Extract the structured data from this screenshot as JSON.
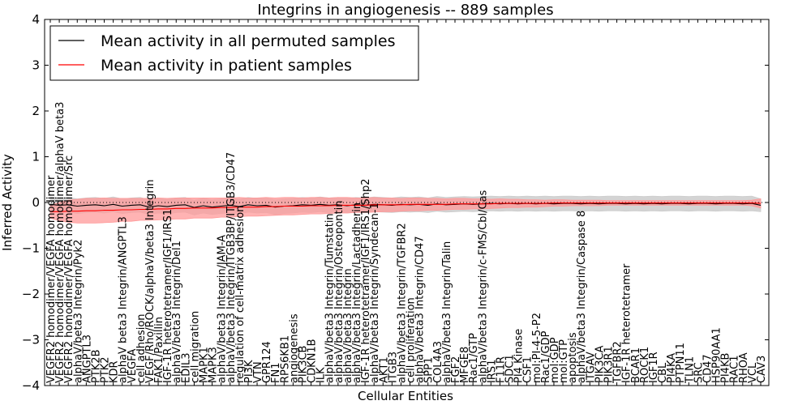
{
  "chart_data": {
    "type": "line",
    "title": "Integrins in angiogenesis -- 889 samples",
    "xlabel": "Cellular Entities",
    "ylabel": "Inferred Activity",
    "ylim": [
      -4,
      4
    ],
    "yticks": [
      -4,
      -3,
      -2,
      -1,
      0,
      1,
      2,
      3,
      4
    ],
    "ytick_labels": [
      "−4",
      "−3",
      "−2",
      "−1",
      "0",
      "1",
      "2",
      "3",
      "4"
    ],
    "legend_position": "top-left",
    "categories": [
      "VEGFR2 homodimer/VEGFA homodimer",
      "VEGFR2 homodimer/VEGFA homodimer/alphaV beta3",
      "VEGFR2 homodimer/VEGFA homodimer/Src",
      "alphaV/beta3 Integrin/Pyk2",
      "ANGPTL3",
      "PTK2B",
      "PTK2",
      "KDR",
      "alphaV beta3 Integrin/ANGPTL3",
      "VEGFA",
      "cell adhesion",
      "VEGF/Rho/ROCK/alphaV/beta3 Integrin",
      "FAK1/Paxillin",
      "IGF-1R heterotetramer/IGF1/IRS1",
      "alphaV/beta3 Integrin/Del1",
      "EDIL3",
      "cell migration",
      "MAPK1",
      "MAPK3",
      "alphaV/beta3 Integrin/JAM-A",
      "alphaV/beta3 Integrin/ITGB3BP/ITGB3/CD47",
      "regulation of cell-matrix adhesion",
      "PI3K",
      "VTN",
      "GPR124",
      "FN1",
      "RPS6KB1",
      "angiogenesis",
      "PIK3CB",
      "CDKN1B",
      "ILK",
      "alphaV/beta3 Integrin/Tumstatin",
      "alphaV/beta3 Integrin/Osteopontin",
      "alphaV/beta3 Integrin",
      "alphaV/beta3 Integrin/Lactadherin",
      "IGF-1R heterotetramer/IGF1/IRS1/Shp2",
      "alphaV/beta3 Integrin/Syndecan-1",
      "AKT1",
      "ITGB3",
      "alphaV/beta3 Integrin/TGFBR2",
      "cell proliferation",
      "alphaV/beta3 Integrin/CD47",
      "SPP1",
      "COL4A3",
      "alphaV/beta3 Integrin/Talin",
      "FGF2",
      "MFGE8",
      "Rac1/GTP",
      "alphaV/beta3 Integrin/c-FMS/Cbl/Cas",
      "IRS1",
      "F11R",
      "SDC1",
      "PI4 Kinase",
      "CSF1",
      "mol:PI-4-5-P2",
      "Rac1/GDP",
      "mol:GDP",
      "mol:GTP",
      "apoptosis",
      "alphaV/beta3 Integrin/Caspase 8",
      "ITGAV",
      "PIK3CA",
      "PIK3R1",
      "TGFBR2",
      "IGF-1R heterotetramer",
      "BCAR1",
      "ROCK1",
      "IGF1R",
      "CBL",
      "PI4KA",
      "PTPN11",
      "TLN1",
      "SRC",
      "CD47",
      "HSP90AA1",
      "PI4KB",
      "RAC1",
      "RHOA",
      "VCL",
      "CAV3"
    ],
    "series": [
      {
        "name": "Mean activity in all permuted samples",
        "color": "#000000",
        "band_color": "#cccccc",
        "values": [
          -0.04,
          -0.06,
          -0.05,
          -0.08,
          -0.06,
          -0.05,
          -0.07,
          -0.04,
          -0.08,
          -0.06,
          -0.05,
          -0.1,
          -0.07,
          -0.09,
          -0.06,
          -0.05,
          -0.11,
          -0.07,
          -0.1,
          -0.08,
          -0.06,
          -0.09,
          -0.05,
          -0.07,
          -0.06,
          -0.1,
          -0.08,
          -0.07,
          -0.05,
          -0.06,
          -0.04,
          -0.06,
          -0.05,
          -0.07,
          -0.05,
          -0.06,
          -0.04,
          -0.05,
          -0.06,
          -0.04,
          -0.05,
          -0.04,
          -0.06,
          -0.03,
          -0.05,
          -0.04,
          -0.03,
          -0.04,
          -0.03,
          -0.02,
          -0.03,
          -0.02,
          -0.03,
          -0.02,
          -0.03,
          -0.02,
          -0.03,
          -0.02,
          -0.02,
          -0.03,
          -0.02,
          -0.03,
          -0.02,
          -0.02,
          -0.03,
          -0.02,
          -0.03,
          -0.02,
          -0.03,
          -0.02,
          -0.02,
          -0.03,
          -0.02,
          -0.02,
          -0.03,
          -0.02,
          -0.02,
          -0.03,
          -0.02,
          -0.06
        ],
        "band_half_width": [
          0.16,
          0.16,
          0.16,
          0.16,
          0.16,
          0.16,
          0.16,
          0.16,
          0.16,
          0.16,
          0.16,
          0.16,
          0.16,
          0.16,
          0.16,
          0.16,
          0.16,
          0.16,
          0.16,
          0.16,
          0.16,
          0.16,
          0.16,
          0.16,
          0.16,
          0.16,
          0.16,
          0.16,
          0.16,
          0.16,
          0.16,
          0.16,
          0.16,
          0.16,
          0.16,
          0.16,
          0.16,
          0.16,
          0.16,
          0.16,
          0.16,
          0.16,
          0.16,
          0.16,
          0.16,
          0.16,
          0.16,
          0.16,
          0.16,
          0.16,
          0.16,
          0.16,
          0.16,
          0.16,
          0.16,
          0.16,
          0.16,
          0.16,
          0.16,
          0.16,
          0.16,
          0.16,
          0.16,
          0.16,
          0.16,
          0.16,
          0.16,
          0.16,
          0.16,
          0.16,
          0.16,
          0.16,
          0.16,
          0.16,
          0.16,
          0.16,
          0.16,
          0.16,
          0.16,
          0.14
        ]
      },
      {
        "name": "Mean activity in patient samples",
        "color": "#ff0000",
        "band_color": "#ff9999",
        "values": [
          -0.2,
          -0.2,
          -0.19,
          -0.19,
          -0.18,
          -0.18,
          -0.17,
          -0.17,
          -0.16,
          -0.16,
          -0.15,
          -0.15,
          -0.14,
          -0.14,
          -0.13,
          -0.13,
          -0.12,
          -0.12,
          -0.12,
          -0.11,
          -0.11,
          -0.1,
          -0.1,
          -0.1,
          -0.09,
          -0.09,
          -0.08,
          -0.08,
          -0.08,
          -0.07,
          -0.07,
          -0.07,
          -0.06,
          -0.06,
          -0.06,
          -0.06,
          -0.05,
          -0.05,
          -0.05,
          -0.05,
          -0.04,
          -0.04,
          -0.04,
          -0.04,
          -0.04,
          -0.03,
          -0.03,
          -0.03,
          -0.03,
          -0.03,
          -0.02,
          -0.02,
          -0.02,
          -0.02,
          -0.02,
          -0.02,
          -0.01,
          -0.01,
          -0.01,
          -0.01,
          -0.01,
          -0.01,
          -0.01,
          -0.01,
          -0.01,
          -0.01,
          -0.01,
          -0.01,
          -0.01,
          -0.01,
          -0.01,
          -0.01,
          -0.01,
          -0.01,
          -0.01,
          -0.01,
          -0.01,
          -0.01,
          -0.01,
          -0.02
        ],
        "band_half_width": [
          0.14,
          0.2,
          0.24,
          0.26,
          0.27,
          0.27,
          0.27,
          0.26,
          0.25,
          0.25,
          0.24,
          0.24,
          0.24,
          0.23,
          0.23,
          0.23,
          0.22,
          0.22,
          0.22,
          0.21,
          0.21,
          0.21,
          0.2,
          0.2,
          0.2,
          0.19,
          0.19,
          0.19,
          0.18,
          0.18,
          0.18,
          0.17,
          0.17,
          0.17,
          0.16,
          0.16,
          0.16,
          0.15,
          0.15,
          0.14,
          0.14,
          0.14,
          0.13,
          0.13,
          0.12,
          0.12,
          0.12,
          0.11,
          0.11,
          0.1,
          0.1,
          0.09,
          0.09,
          0.08,
          0.08,
          0.07,
          0.07,
          0.07,
          0.06,
          0.06,
          0.06,
          0.06,
          0.05,
          0.05,
          0.05,
          0.05,
          0.05,
          0.05,
          0.05,
          0.05,
          0.05,
          0.05,
          0.05,
          0.05,
          0.05,
          0.05,
          0.05,
          0.05,
          0.06,
          0.1
        ]
      }
    ],
    "reference_line": {
      "y": 0,
      "style": "dotted"
    }
  }
}
